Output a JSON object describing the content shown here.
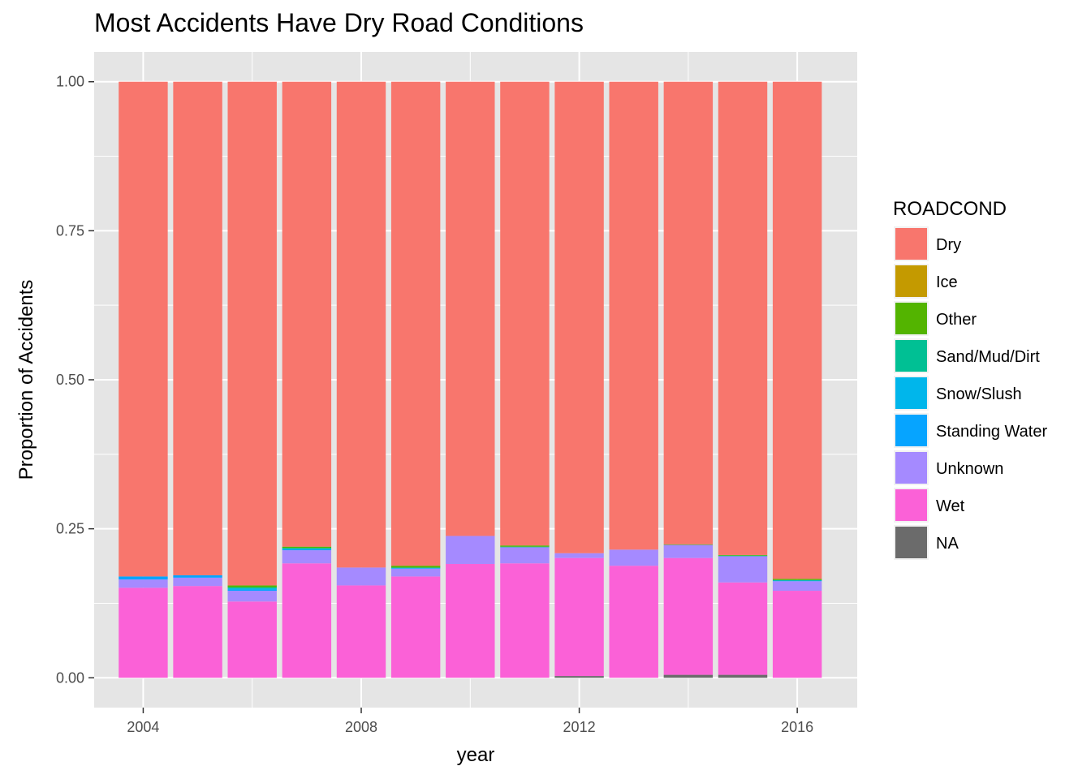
{
  "chart_data": {
    "type": "bar",
    "stacked": true,
    "title": "Most Accidents Have Dry Road Conditions",
    "xlabel": "year",
    "ylabel": "Proportion of Accidents",
    "x": [
      2004,
      2005,
      2006,
      2007,
      2008,
      2009,
      2010,
      2011,
      2012,
      2013,
      2014,
      2015,
      2016
    ],
    "xlim": [
      2003.1,
      2017.1
    ],
    "ylim": [
      -0.05,
      1.05
    ],
    "x_ticks": [
      2004,
      2008,
      2012,
      2016
    ],
    "y_ticks": [
      "0.00",
      "0.25",
      "0.50",
      "0.75",
      "1.00"
    ],
    "grid": true,
    "legend": {
      "title": "ROADCOND",
      "position": "right"
    },
    "stack_order_bottom_to_top": [
      "NA",
      "Wet",
      "Unknown",
      "Standing Water",
      "Snow/Slush",
      "Sand/Mud/Dirt",
      "Other",
      "Ice",
      "Dry"
    ],
    "series": [
      {
        "name": "Dry",
        "color": "#F8766D",
        "values": [
          0.83,
          0.828,
          0.845,
          0.78,
          0.815,
          0.812,
          0.762,
          0.778,
          0.791,
          0.785,
          0.776,
          0.794,
          0.834
        ]
      },
      {
        "name": "Ice",
        "color": "#C49A00",
        "values": [
          0.0,
          0.0,
          0.0,
          0.0,
          0.0,
          0.0,
          0.0,
          0.0,
          0.0,
          0.0,
          0.0,
          0.0,
          0.0
        ]
      },
      {
        "name": "Other",
        "color": "#53B400",
        "values": [
          0.0,
          0.0,
          0.003,
          0.002,
          0.0,
          0.003,
          0.0,
          0.002,
          0.0,
          0.0,
          0.001,
          0.001,
          0.002
        ]
      },
      {
        "name": "Sand/Mud/Dirt",
        "color": "#00C094",
        "values": [
          0.0,
          0.0,
          0.002,
          0.002,
          0.0,
          0.001,
          0.0,
          0.001,
          0.0,
          0.0,
          0.0,
          0.001,
          0.001
        ]
      },
      {
        "name": "Snow/Slush",
        "color": "#00B6EB",
        "values": [
          0.0,
          0.0,
          0.002,
          0.0,
          0.0,
          0.0,
          0.0,
          0.0,
          0.0,
          0.0,
          0.0,
          0.0,
          0.0
        ]
      },
      {
        "name": "Standing Water",
        "color": "#06A4FF",
        "values": [
          0.005,
          0.004,
          0.002,
          0.002,
          0.0,
          0.001,
          0.0,
          0.0,
          0.0,
          0.0,
          0.0,
          0.0,
          0.001
        ]
      },
      {
        "name": "Unknown",
        "color": "#A58AFF",
        "values": [
          0.014,
          0.014,
          0.018,
          0.022,
          0.03,
          0.013,
          0.047,
          0.027,
          0.008,
          0.027,
          0.022,
          0.044,
          0.016
        ]
      },
      {
        "name": "Wet",
        "color": "#FB61D7",
        "values": [
          0.151,
          0.154,
          0.128,
          0.192,
          0.155,
          0.17,
          0.191,
          0.192,
          0.198,
          0.188,
          0.196,
          0.155,
          0.146
        ]
      },
      {
        "name": "NA",
        "color": "#6B6B6B",
        "values": [
          0.0,
          0.0,
          0.0,
          0.0,
          0.0,
          0.0,
          0.0,
          0.0,
          0.003,
          0.0,
          0.005,
          0.005,
          0.0
        ]
      }
    ]
  },
  "colors": {
    "panel_background": "#E5E5E5",
    "grid_line": "#FFFFFF",
    "Dry": "#F8766D",
    "Ice": "#C49A00",
    "Other": "#53B400",
    "Sand/Mud/Dirt": "#00C094",
    "Snow/Slush": "#00B6EB",
    "Standing Water": "#06A4FF",
    "Unknown": "#A58AFF",
    "Wet": "#FB61D7",
    "NA": "#6B6B6B"
  }
}
